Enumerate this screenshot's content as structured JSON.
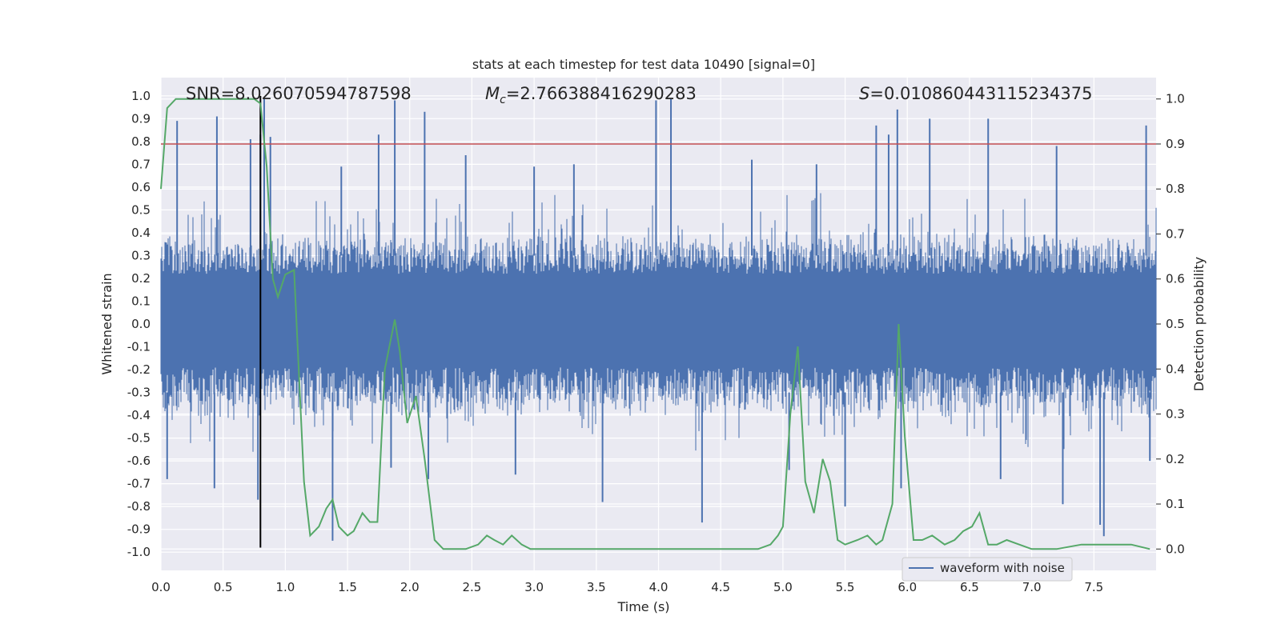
{
  "chart_data": {
    "type": "line",
    "title": "stats at each timestep for test data 10490 [signal=0]",
    "xlabel": "Time (s)",
    "ylabel": "Whitened strain",
    "y2label": "Detection probability",
    "xlim": [
      0.0,
      8.0
    ],
    "ylim": [
      -1.08,
      1.08
    ],
    "y2lim": [
      -0.0475,
      1.0475
    ],
    "xticks": [
      "0.0",
      "0.5",
      "1.0",
      "1.5",
      "2.0",
      "2.5",
      "3.0",
      "3.5",
      "4.0",
      "4.5",
      "5.0",
      "5.5",
      "6.0",
      "6.5",
      "7.0",
      "7.5"
    ],
    "yticks": [
      "1.0",
      "0.9",
      "0.8",
      "0.7",
      "0.6",
      "0.5",
      "0.4",
      "0.3",
      "0.2",
      "0.1",
      "0.0",
      "-0.1",
      "-0.2",
      "-0.3",
      "-0.4",
      "-0.5",
      "-0.6",
      "-0.7",
      "-0.8",
      "-0.9",
      "-1.0"
    ],
    "y2ticks": [
      "1.0",
      "0.9",
      "0.8",
      "0.7",
      "0.6",
      "0.5",
      "0.4",
      "0.3",
      "0.2",
      "0.1",
      "0.0"
    ],
    "grid": true,
    "legend": {
      "position": "lower-right",
      "label": "waveform with noise"
    },
    "stats": {
      "snr_label": "SNR=8.026070594787598",
      "mc_symbol": "M",
      "mc_sub": "c",
      "mc_value": "=2.766388416290283",
      "s_symbol": "S",
      "s_value": "=0.010860443115234375"
    },
    "threshold": {
      "y2": 0.9,
      "color": "#c44e52"
    },
    "marker_time": 0.8,
    "strain": {
      "name": "waveform with noise",
      "color": "#4c72b0",
      "dense_band": [
        -0.19,
        0.22
      ],
      "envelope_upper": 0.4,
      "envelope_lower": -0.42,
      "peaks_upper": [
        [
          0.13,
          0.89
        ],
        [
          0.45,
          0.91
        ],
        [
          0.72,
          0.81
        ],
        [
          0.8,
          0.83
        ],
        [
          0.83,
          0.99
        ],
        [
          0.88,
          0.82
        ],
        [
          1.45,
          0.69
        ],
        [
          1.75,
          0.83
        ],
        [
          1.88,
          0.98
        ],
        [
          2.12,
          0.93
        ],
        [
          2.45,
          0.74
        ],
        [
          3.0,
          0.69
        ],
        [
          3.32,
          0.7
        ],
        [
          3.98,
          0.98
        ],
        [
          4.1,
          0.99
        ],
        [
          4.75,
          0.72
        ],
        [
          5.27,
          0.7
        ],
        [
          5.75,
          0.87
        ],
        [
          5.85,
          0.83
        ],
        [
          5.92,
          0.94
        ],
        [
          6.18,
          0.9
        ],
        [
          6.65,
          0.9
        ],
        [
          7.2,
          0.78
        ],
        [
          7.92,
          0.87
        ]
      ],
      "peaks_lower": [
        [
          0.05,
          -0.68
        ],
        [
          0.43,
          -0.72
        ],
        [
          0.78,
          -0.77
        ],
        [
          1.38,
          -0.95
        ],
        [
          1.85,
          -0.63
        ],
        [
          2.15,
          -0.68
        ],
        [
          2.85,
          -0.66
        ],
        [
          3.55,
          -0.78
        ],
        [
          4.35,
          -0.87
        ],
        [
          5.05,
          -0.64
        ],
        [
          5.5,
          -0.8
        ],
        [
          5.95,
          -0.72
        ],
        [
          6.75,
          -0.68
        ],
        [
          7.25,
          -0.79
        ],
        [
          7.55,
          -0.88
        ],
        [
          7.58,
          -0.93
        ],
        [
          7.95,
          -0.6
        ]
      ]
    },
    "detection": {
      "color": "#55a868",
      "x": [
        0.0,
        0.05,
        0.12,
        0.2,
        0.3,
        0.4,
        0.5,
        0.6,
        0.7,
        0.75,
        0.8,
        0.85,
        0.9,
        0.94,
        1.0,
        1.07,
        1.15,
        1.2,
        1.27,
        1.33,
        1.38,
        1.43,
        1.5,
        1.55,
        1.62,
        1.68,
        1.74,
        1.8,
        1.88,
        1.92,
        1.98,
        2.05,
        2.12,
        2.2,
        2.27,
        2.35,
        2.45,
        2.55,
        2.62,
        2.68,
        2.75,
        2.82,
        2.9,
        2.97,
        3.05,
        3.2,
        3.4,
        3.6,
        3.8,
        4.0,
        4.2,
        4.4,
        4.6,
        4.8,
        4.9,
        4.96,
        5.0,
        5.06,
        5.12,
        5.18,
        5.25,
        5.32,
        5.38,
        5.44,
        5.5,
        5.6,
        5.68,
        5.75,
        5.8,
        5.88,
        5.93,
        5.98,
        6.05,
        6.12,
        6.2,
        6.3,
        6.38,
        6.45,
        6.52,
        6.58,
        6.65,
        6.72,
        6.8,
        6.9,
        7.0,
        7.2,
        7.4,
        7.5,
        7.6,
        7.8,
        7.95
      ],
      "y": [
        0.8,
        0.98,
        1.0,
        1.0,
        1.0,
        1.0,
        1.0,
        1.0,
        1.0,
        1.0,
        0.99,
        0.85,
        0.6,
        0.56,
        0.61,
        0.62,
        0.15,
        0.03,
        0.05,
        0.09,
        0.11,
        0.05,
        0.03,
        0.04,
        0.08,
        0.06,
        0.06,
        0.4,
        0.51,
        0.44,
        0.28,
        0.34,
        0.2,
        0.02,
        0.0,
        0.0,
        0.0,
        0.01,
        0.03,
        0.02,
        0.01,
        0.03,
        0.01,
        0.0,
        0.0,
        0.0,
        0.0,
        0.0,
        0.0,
        0.0,
        0.0,
        0.0,
        0.0,
        0.0,
        0.01,
        0.03,
        0.05,
        0.3,
        0.45,
        0.15,
        0.08,
        0.2,
        0.15,
        0.02,
        0.01,
        0.02,
        0.03,
        0.01,
        0.02,
        0.1,
        0.5,
        0.25,
        0.02,
        0.02,
        0.03,
        0.01,
        0.02,
        0.04,
        0.05,
        0.08,
        0.01,
        0.01,
        0.02,
        0.01,
        0.0,
        0.0,
        0.01,
        0.01,
        0.01,
        0.01,
        0.0
      ]
    }
  }
}
